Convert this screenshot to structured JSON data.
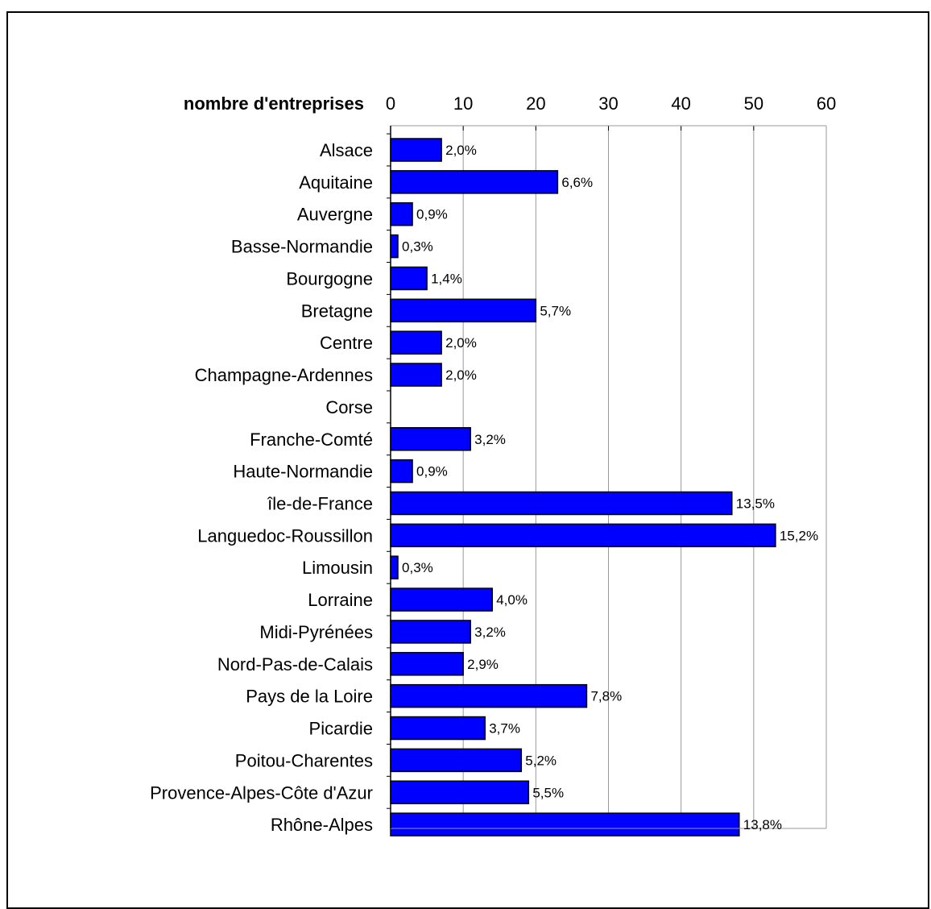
{
  "chart_data": {
    "type": "bar",
    "orientation": "horizontal",
    "axis_title": "nombre d'entreprises",
    "xlim": [
      0,
      60
    ],
    "x_ticks": [
      "0",
      "10",
      "20",
      "30",
      "40",
      "50",
      "60"
    ],
    "x_tick_values": [
      0,
      10,
      20,
      30,
      40,
      50,
      60
    ],
    "grid": true,
    "bar_color": "#0000ff",
    "categories": [
      "Alsace",
      "Aquitaine",
      "Auvergne",
      "Basse-Normandie",
      "Bourgogne",
      "Bretagne",
      "Centre",
      "Champagne-Ardennes",
      "Corse",
      "Franche-Comté",
      "Haute-Normandie",
      "île-de-France",
      "Languedoc-Roussillon",
      "Limousin",
      "Lorraine",
      "Midi-Pyrénées",
      "Nord-Pas-de-Calais",
      "Pays de la Loire",
      "Picardie",
      "Poitou-Charentes",
      "Provence-Alpes-Côte d'Azur",
      "Rhône-Alpes"
    ],
    "values": [
      7,
      23,
      3,
      1,
      5,
      20,
      7,
      7,
      0,
      11,
      3,
      47,
      53,
      1,
      14,
      11,
      10,
      27,
      13,
      18,
      19,
      48
    ],
    "data_labels": [
      "2,0%",
      "6,6%",
      "0,9%",
      "0,3%",
      "1,4%",
      "5,7%",
      "2,0%",
      "2,0%",
      "",
      "3,2%",
      "0,9%",
      "13,5%",
      "15,2%",
      "0,3%",
      "4,0%",
      "3,2%",
      "2,9%",
      "7,8%",
      "3,7%",
      "5,2%",
      "5,5%",
      "13,8%"
    ]
  }
}
